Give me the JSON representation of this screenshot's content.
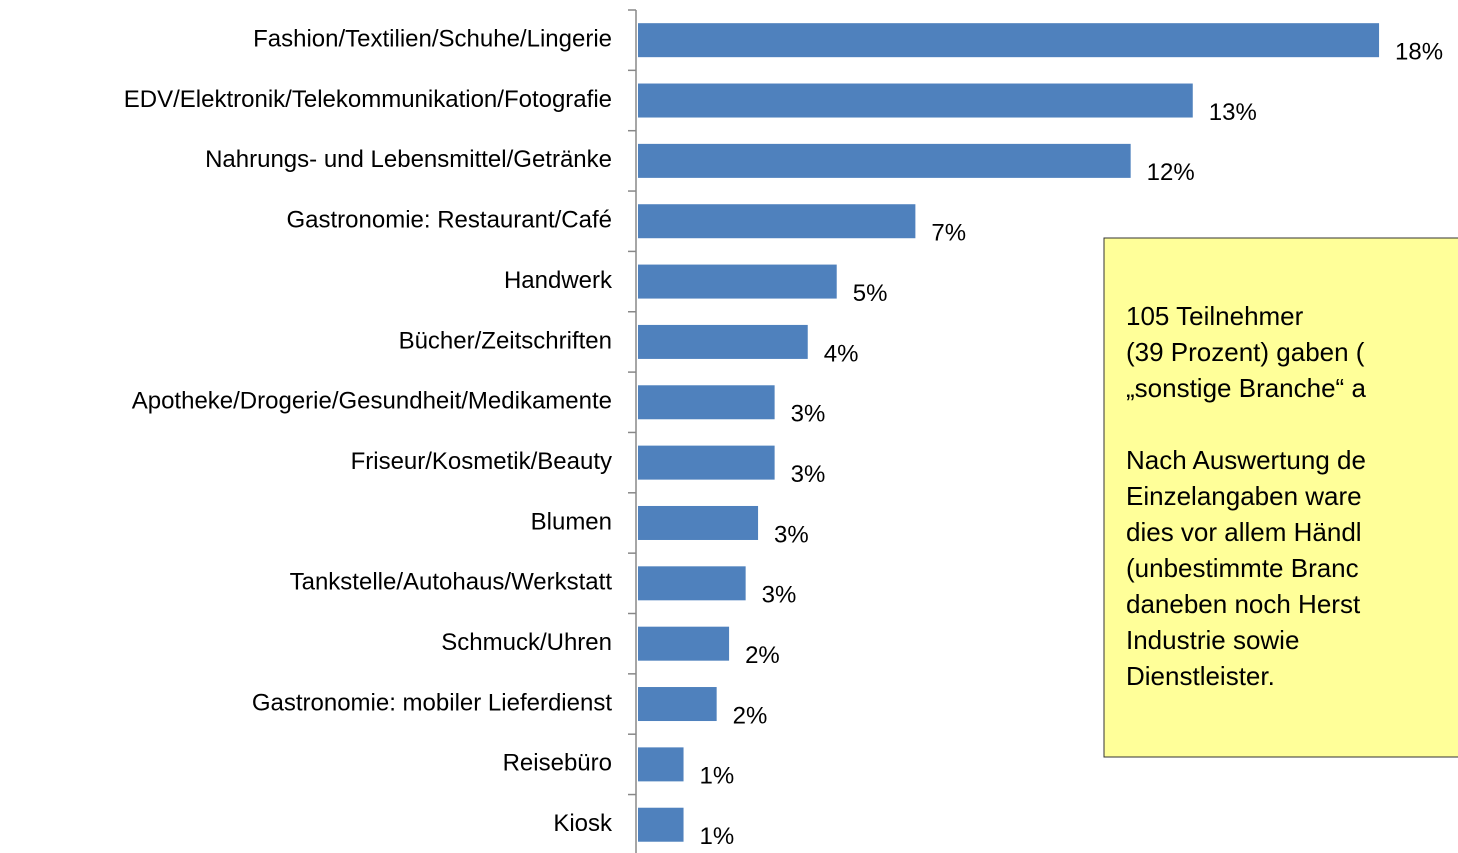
{
  "chart_data": {
    "type": "barh",
    "categories": [
      "Fashion/Textilien/Schuhe/Lingerie",
      "EDV/Elektronik/Telekommunikation/Fotografie",
      "Nahrungs- und Lebensmittel/Getränke",
      "Gastronomie: Restaurant/Café",
      "Handwerk",
      "Bücher/Zeitschriften",
      "Apotheke/Drogerie/Gesundheit/Medikamente",
      "Friseur/Kosmetik/Beauty",
      "Blumen",
      "Tankstelle/Autohaus/Werkstatt",
      "Schmuck/Uhren",
      "Gastronomie: mobiler Lieferdienst",
      "Reisebüro",
      "Kiosk"
    ],
    "values": [
      17.9,
      13.4,
      11.9,
      6.7,
      4.8,
      4.1,
      3.3,
      3.3,
      2.9,
      2.6,
      2.2,
      1.9,
      1.1,
      1.1
    ],
    "value_labels": [
      "18%",
      "13%",
      "12%",
      "7%",
      "5%",
      "4%",
      "3%",
      "3%",
      "3%",
      "3%",
      "2%",
      "2%",
      "1%",
      "1%"
    ],
    "color": "#4f81bd",
    "xlim": [
      0,
      20
    ],
    "annotation": {
      "paragraphs": [
        [
          "105 Teilnehmer",
          "(39 Prozent) gaben (",
          "„sonstige Branche“ a"
        ],
        [
          "Nach Auswertung de",
          "Einzelangaben ware",
          "dies vor allem Händl",
          "(unbestimmte Branc",
          "daneben noch Herst",
          "Industrie sowie",
          "Dienstleister."
        ]
      ]
    }
  }
}
